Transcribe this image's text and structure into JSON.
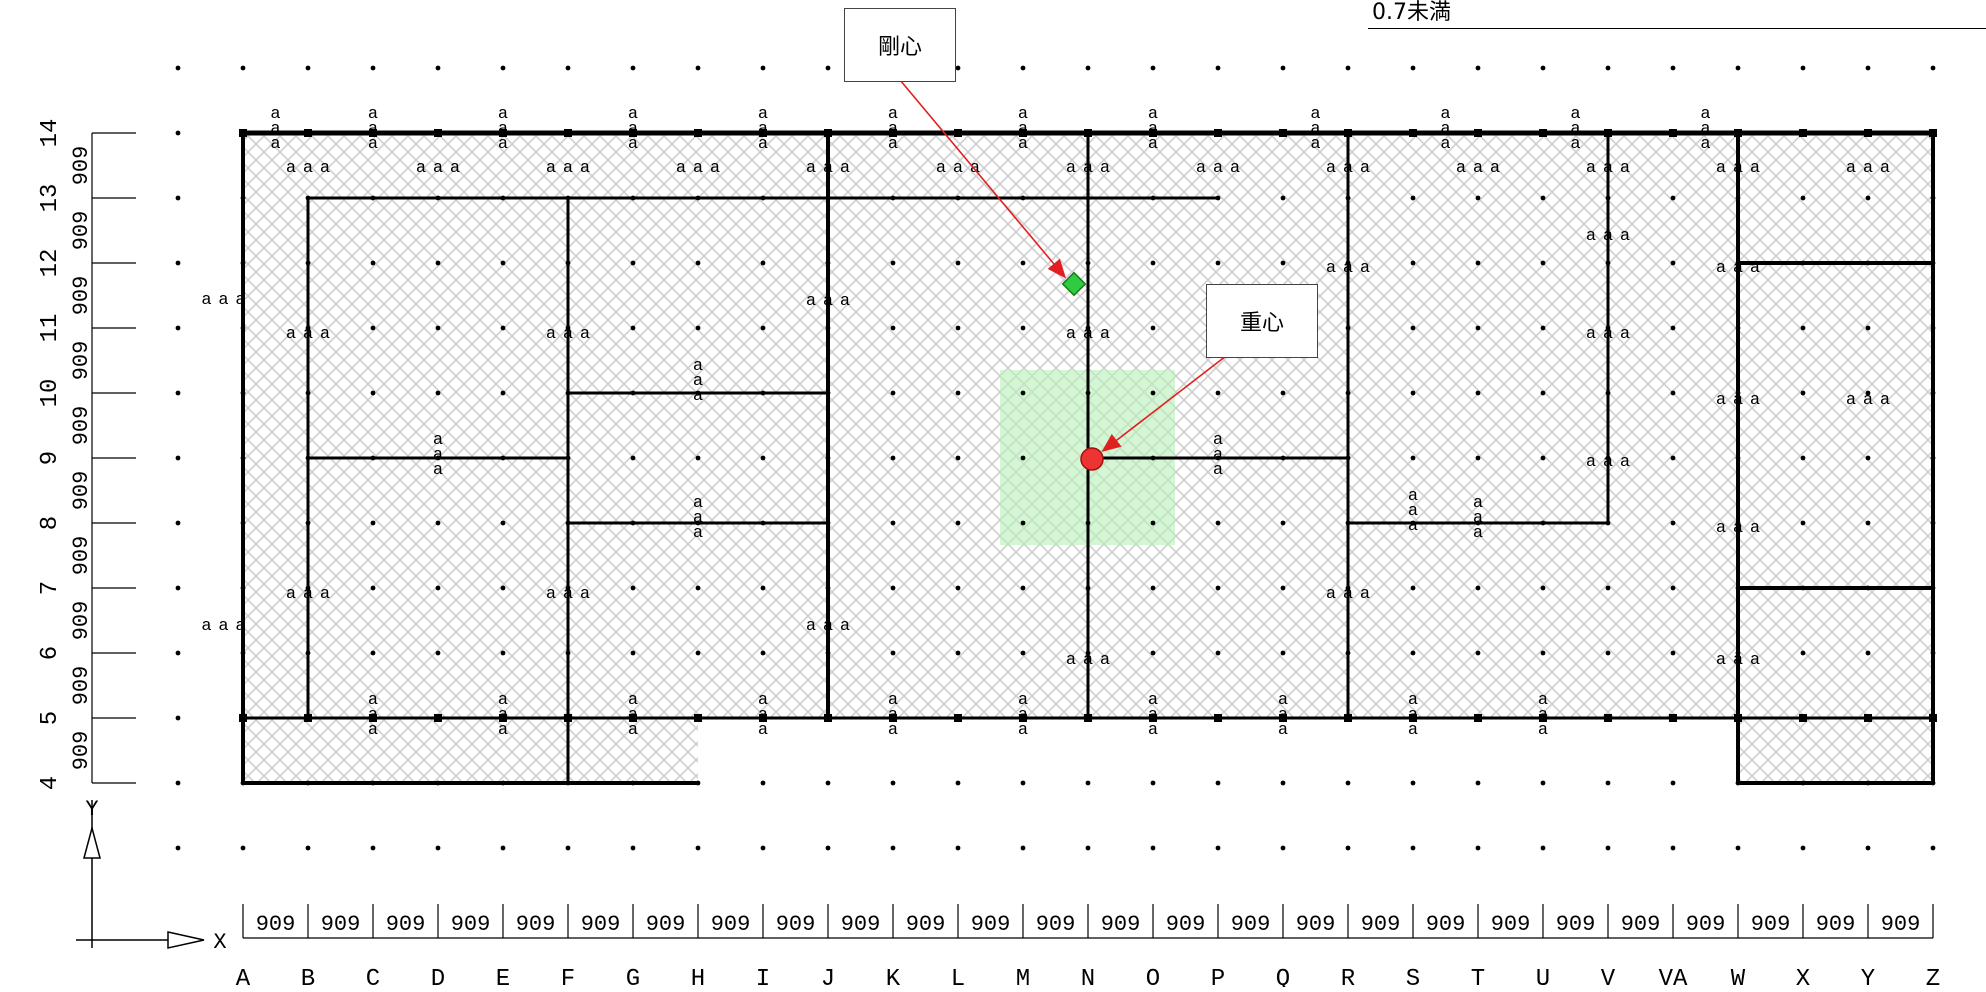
{
  "legend": {
    "text": "0.7未満"
  },
  "callouts": {
    "stiffness_center": "剛心",
    "gravity_center": "重心"
  },
  "axes": {
    "x_label": "X",
    "y_label": "Y"
  },
  "grid": {
    "span_value": "909",
    "x_labels": [
      "A",
      "B",
      "C",
      "D",
      "E",
      "F",
      "G",
      "H",
      "I",
      "J",
      "K",
      "L",
      "M",
      "N",
      "O",
      "P",
      "Q",
      "R",
      "S",
      "T",
      "U",
      "V",
      "VA",
      "W",
      "X",
      "Y",
      "Z"
    ],
    "y_labels": [
      "4",
      "5",
      "6",
      "7",
      "8",
      "9",
      "10",
      "11",
      "12",
      "13",
      "14"
    ]
  },
  "marker_text": "a",
  "colors": {
    "wall": "#000000",
    "arrow": "#e02020",
    "stiffness_marker": "#2ecc40",
    "gravity_marker": "#ee3333",
    "hatch": "#cfcfcf",
    "highlight": "#b9f0b9"
  }
}
